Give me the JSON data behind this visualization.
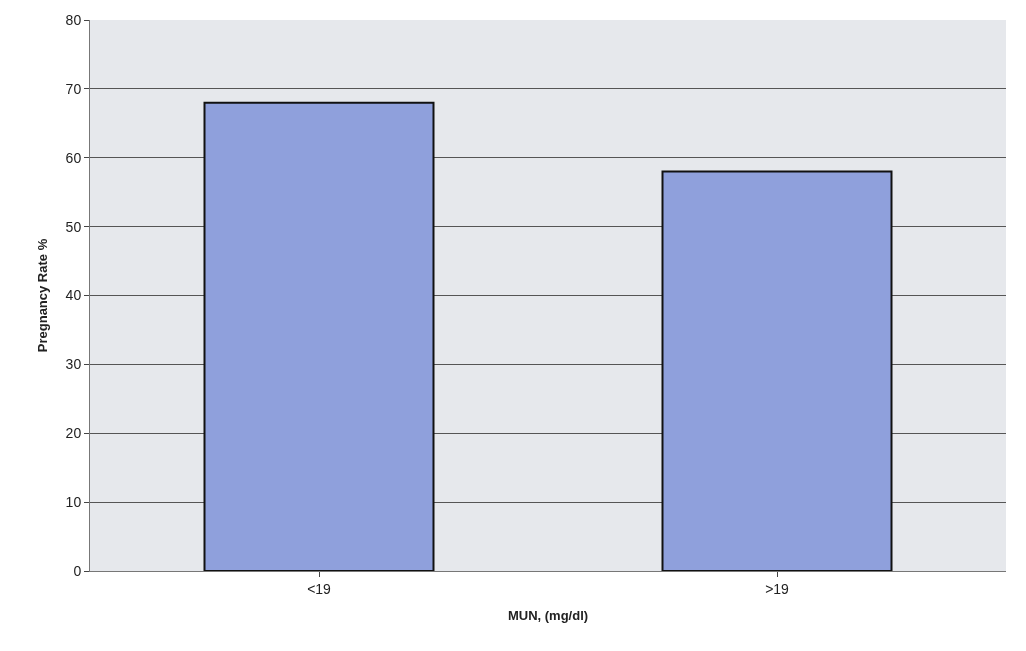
{
  "chart_data": {
    "type": "bar",
    "xlabel": "MUN, (mg/dl)",
    "ylabel": "Pregnancy Rate %",
    "categories": [
      "<19",
      ">19"
    ],
    "values": [
      68,
      58
    ],
    "color": "#8fa0dc",
    "ylim": [
      0,
      80
    ],
    "yticks": [
      0,
      10,
      20,
      30,
      40,
      50,
      60,
      70,
      80
    ],
    "grid": "y",
    "legend": false
  }
}
